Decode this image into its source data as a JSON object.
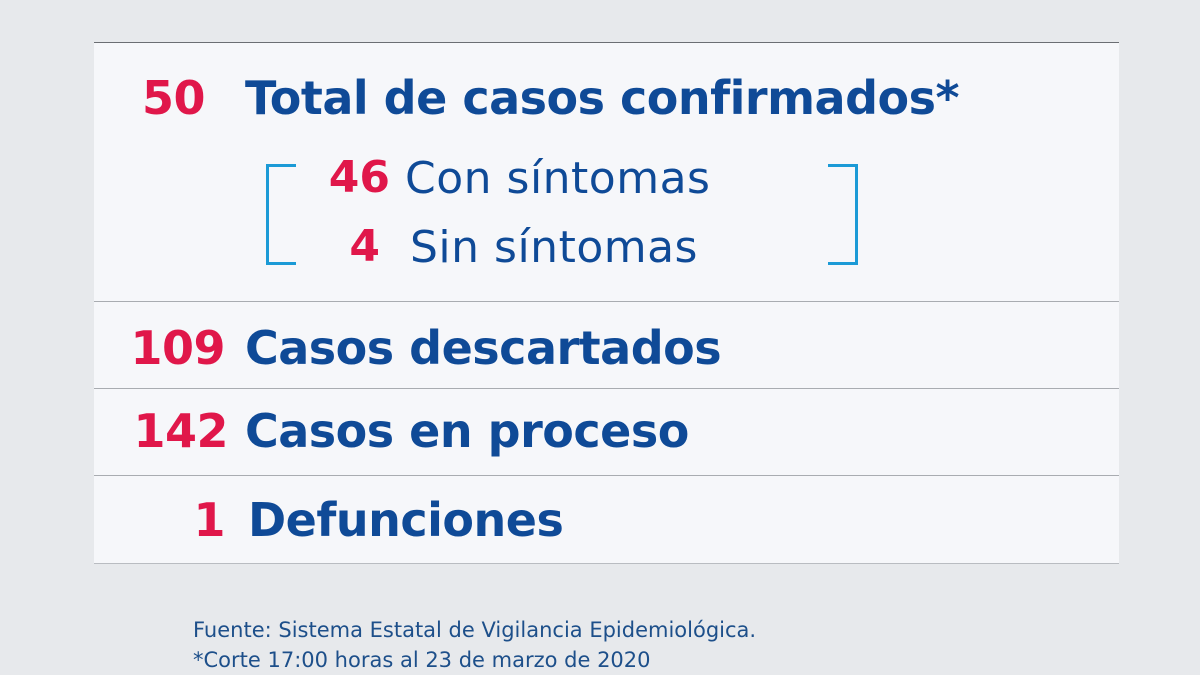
{
  "rows": {
    "confirmed": {
      "value": "50",
      "label": "Total de casos confirmados*"
    },
    "with_symptoms": {
      "value": "46",
      "label": "Con síntomas"
    },
    "without_symptoms": {
      "value": "4",
      "label": "Sin síntomas"
    },
    "discarded": {
      "value": "109",
      "label": "Casos descartados"
    },
    "in_process": {
      "value": "142",
      "label": "Casos en proceso"
    },
    "deaths": {
      "value": "1",
      "label": "Defunciones"
    }
  },
  "footer": {
    "source": "Fuente: Sistema Estatal de Vigilancia Epidemiológica.",
    "cutoff": "*Corte 17:00 horas al 23 de marzo de 2020"
  },
  "colors": {
    "number": "#e0174a",
    "label": "#0f4a97",
    "bracket": "#1b9ad6",
    "background": "#e7e9ec",
    "card": "#f6f7fa"
  }
}
